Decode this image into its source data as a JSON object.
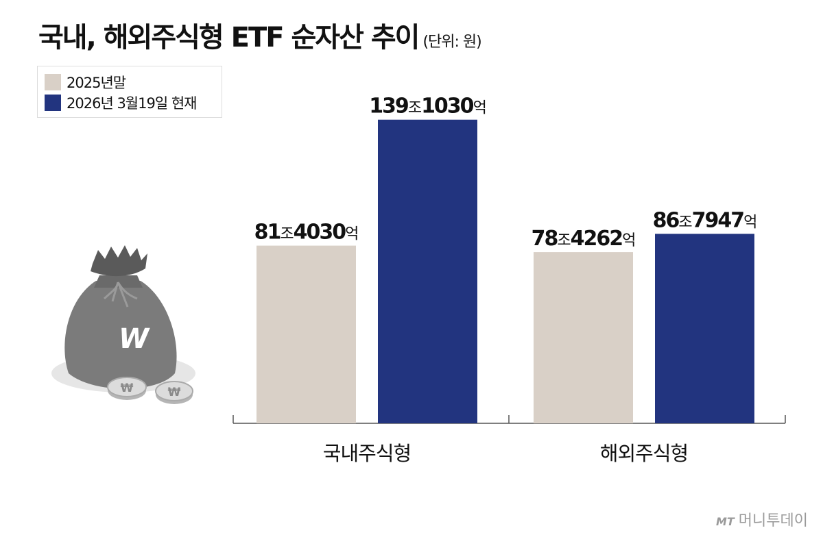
{
  "header": {
    "title": "국내, 해외주식형 ETF 순자산 추이",
    "unit": "(단위: 원)"
  },
  "legend": [
    {
      "label": "2025년말",
      "color": "#d9d0c7"
    },
    {
      "label": "2026년 3월19일 현재",
      "color": "#22347f"
    }
  ],
  "chart_data": {
    "type": "bar",
    "title": "국내, 해외주식형 ETF 순자산 추이",
    "unit": "(단위: 원)",
    "categories": [
      "국내주식형",
      "해외주식형"
    ],
    "series": [
      {
        "name": "2025년말",
        "color": "#d9d0c7",
        "values": [
          81.403,
          78.4262
        ],
        "labels": [
          {
            "a": "81",
            "b": "조",
            "c": "4030",
            "d": "억"
          },
          {
            "a": "78",
            "b": "조",
            "c": "4262",
            "d": "억"
          }
        ]
      },
      {
        "name": "2026년 3월19일 현재",
        "color": "#22347f",
        "values": [
          139.103,
          86.7947
        ],
        "labels": [
          {
            "a": "139",
            "b": "조",
            "c": "1030",
            "d": "억"
          },
          {
            "a": "86",
            "b": "조",
            "c": "7947",
            "d": "억"
          }
        ]
      }
    ],
    "value_unit": "조원",
    "ylim": [
      0,
      150
    ],
    "grid": false,
    "legend_position": "top-left"
  },
  "illustration": {
    "icon": "money-bag-icon",
    "bag_symbol": "W",
    "coin_symbol": "₩"
  },
  "footer": {
    "logo_mark": "MT",
    "logo_text": "머니투데이"
  }
}
